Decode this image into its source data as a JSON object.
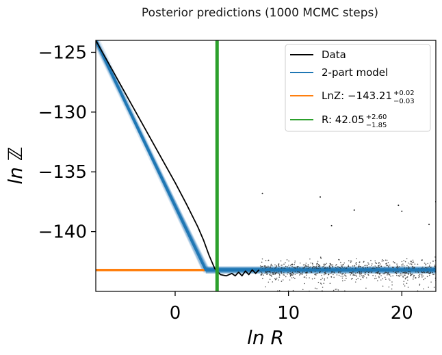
{
  "chart_data": {
    "type": "line",
    "title": "Posterior predictions (1000 MCMC steps)",
    "xlabel": "ln R",
    "ylabel": "ln ℤ",
    "xlim": [
      -7,
      23
    ],
    "ylim": [
      -145,
      -124
    ],
    "xticks": [
      0,
      10,
      20
    ],
    "xtick_labels": [
      "0",
      "10",
      "20"
    ],
    "yticks": [
      -125,
      -130,
      -135,
      -140
    ],
    "ytick_labels": [
      "−125",
      "−130",
      "−135",
      "−140"
    ],
    "grid": false,
    "legend_position": "top-right",
    "colors": {
      "data": "#000000",
      "model": "#1f77b4",
      "lnz": "#ff7f0e",
      "r": "#2ca02c"
    },
    "legend": [
      {
        "key": "data",
        "text": "Data"
      },
      {
        "key": "model",
        "text": "2-part model"
      },
      {
        "key": "lnz",
        "text": "LnZ: −143.21",
        "sup": "+0.02",
        "sub": "−0.03"
      },
      {
        "key": "r",
        "text": "R: 42.05",
        "sup": "+2.60",
        "sub": "−1.85"
      }
    ],
    "lnz_value": -143.21,
    "r_line_lnR": 3.7,
    "series": [
      {
        "name": "Data",
        "x": [
          -7.0,
          -6.0,
          -5.0,
          -4.0,
          -3.0,
          -2.0,
          -1.0,
          0.0,
          1.0,
          2.0,
          2.5,
          3.0,
          3.5,
          4.0,
          4.5,
          5.0,
          5.3,
          5.6,
          5.9,
          6.2,
          6.5,
          6.8,
          7.1,
          7.4
        ],
        "y": [
          -124.0,
          -125.7,
          -127.4,
          -129.1,
          -130.8,
          -132.5,
          -134.2,
          -135.9,
          -137.7,
          -139.6,
          -140.7,
          -142.0,
          -143.1,
          -143.6,
          -143.7,
          -143.5,
          -143.7,
          -143.4,
          -143.7,
          -143.3,
          -143.6,
          -143.2,
          -143.5,
          -143.2
        ]
      },
      {
        "name": "2-part model",
        "x": [
          -7.0,
          2.7,
          23.0
        ],
        "y": [
          -124.0,
          -143.2,
          -143.2
        ]
      }
    ],
    "scatter_x_range": [
      7.5,
      23
    ],
    "scatter_y_center": -143.2,
    "outliers": [
      {
        "x": 7.7,
        "y": -136.8
      },
      {
        "x": 12.8,
        "y": -137.1
      },
      {
        "x": 15.8,
        "y": -138.2
      },
      {
        "x": 19.7,
        "y": -137.8
      },
      {
        "x": 20.0,
        "y": -138.3
      },
      {
        "x": 23.0,
        "y": -137.5
      },
      {
        "x": 13.8,
        "y": -139.5
      },
      {
        "x": 22.4,
        "y": -139.4
      }
    ]
  }
}
